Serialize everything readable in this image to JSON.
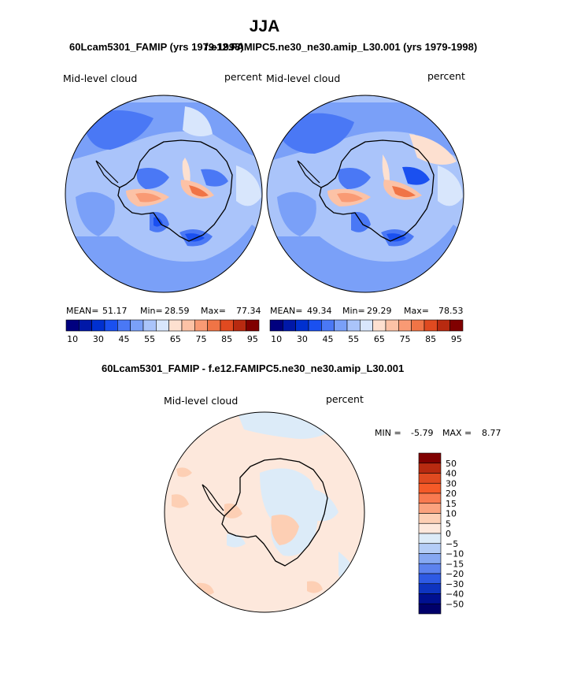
{
  "title": "JJA",
  "panel_left_title": "60Lcam5301_FAMIP (yrs 1979-1998)",
  "panel_right_title": "f.e12.FAMIPC5.ne30_ne30.amip_L30.001 (yrs 1979-1998)",
  "diff_title": "60Lcam5301_FAMIP - f.e12.FAMIPC5.ne30_ne30.amip_L30.001",
  "chart_data": [
    {
      "type": "heatmap",
      "projection": "south-polar-stereographic",
      "variable": "Mid-level cloud",
      "units": "percent",
      "stats": {
        "mean_label": "MEAN=",
        "mean": "51.17",
        "min_label": "Min=",
        "min": "28.59",
        "max_label": "Max=",
        "max": "77.34"
      },
      "colorbar": {
        "orientation": "horizontal",
        "levels": [
          10,
          20,
          30,
          40,
          45,
          50,
          55,
          60,
          65,
          70,
          75,
          80,
          85,
          90,
          95
        ],
        "tick_labels": [
          "10",
          "30",
          "45",
          "55",
          "65",
          "75",
          "85",
          "95"
        ]
      }
    },
    {
      "type": "heatmap",
      "projection": "south-polar-stereographic",
      "variable": "Mid-level cloud",
      "units": "percent",
      "stats": {
        "mean_label": "MEAN=",
        "mean": "49.34",
        "min_label": "Min=",
        "min": "29.29",
        "max_label": "Max=",
        "max": "78.53"
      },
      "colorbar": {
        "orientation": "horizontal",
        "levels": [
          10,
          20,
          30,
          40,
          45,
          50,
          55,
          60,
          65,
          70,
          75,
          80,
          85,
          90,
          95
        ],
        "tick_labels": [
          "10",
          "30",
          "45",
          "55",
          "65",
          "75",
          "85",
          "95"
        ]
      }
    },
    {
      "type": "heatmap",
      "projection": "south-polar-stereographic",
      "variable": "Mid-level cloud",
      "units": "percent",
      "stats": {
        "min_label": "MIN =",
        "min": "-5.79",
        "max_label": "MAX =",
        "max": "8.77"
      },
      "colorbar": {
        "orientation": "vertical",
        "tick_labels": [
          "50",
          "40",
          "30",
          "20",
          "15",
          "10",
          "5",
          "0",
          "−5",
          "−10",
          "−15",
          "−20",
          "−30",
          "−40",
          "−50"
        ]
      }
    }
  ],
  "colors": {
    "seq": [
      "#00007f",
      "#0018a8",
      "#0030d0",
      "#1a50f0",
      "#4a78f5",
      "#7aa0f8",
      "#aac4fa",
      "#d8e6fc",
      "#fde0d0",
      "#fcc2a6",
      "#f99a74",
      "#f07446",
      "#e04a20",
      "#b82a10",
      "#800000"
    ],
    "diff": [
      "#800000",
      "#b82a10",
      "#e04a20",
      "#f55a28",
      "#f97a50",
      "#fba27e",
      "#fdcfb4",
      "#fde8dc",
      "#dcebf8",
      "#b4cdf6",
      "#86a8f2",
      "#5c82ee",
      "#2e5ae4",
      "#0e34c0",
      "#001090",
      "#00006a"
    ]
  }
}
